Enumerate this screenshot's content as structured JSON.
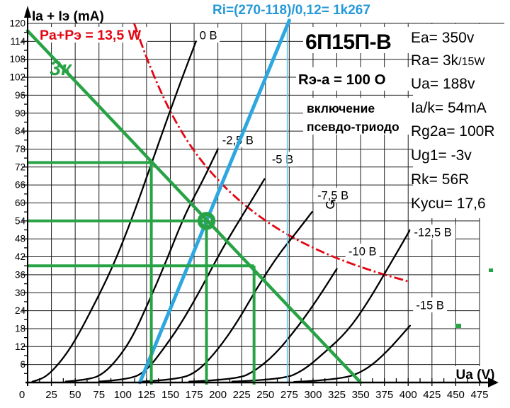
{
  "chart_data": {
    "type": "line",
    "title": "6П15П-В",
    "xlabel": "Ua (V)",
    "ylabel": "Ia + Iэ (mA)",
    "xlim": [
      0,
      478
    ],
    "ylim": [
      0,
      120
    ],
    "grid": true,
    "x_ticks": [
      0,
      25,
      50,
      75,
      100,
      125,
      150,
      175,
      200,
      225,
      250,
      275,
      300,
      325,
      350,
      375,
      400,
      425,
      450,
      475
    ],
    "y_ticks": [
      0,
      6,
      12,
      18,
      24,
      30,
      36,
      42,
      48,
      54,
      60,
      66,
      72,
      78,
      84,
      90,
      96,
      102,
      108,
      114,
      120
    ],
    "anode_curves": [
      {
        "label": "0 В",
        "label_at": [
          190,
          116
        ],
        "points": [
          [
            5,
            0.3
          ],
          [
            8,
            0.5
          ],
          [
            20,
            2
          ],
          [
            35,
            7
          ],
          [
            50,
            14
          ],
          [
            70,
            26
          ],
          [
            90,
            39
          ],
          [
            110,
            55
          ],
          [
            130,
            73
          ],
          [
            150,
            91
          ],
          [
            165,
            104
          ],
          [
            177,
            114
          ]
        ]
      },
      {
        "label": "-2,5 В",
        "label_at": [
          221,
          81
        ],
        "points": [
          [
            40,
            0.3
          ],
          [
            66,
            1
          ],
          [
            80,
            3
          ],
          [
            95,
            8
          ],
          [
            110,
            15
          ],
          [
            126,
            26
          ],
          [
            145,
            40
          ],
          [
            165,
            56
          ],
          [
            185,
            68
          ],
          [
            200,
            78
          ]
        ]
      },
      {
        "label": "-5 В",
        "label_at": [
          268,
          74.5
        ],
        "points": [
          [
            75,
            0.3
          ],
          [
            108,
            1
          ],
          [
            125,
            4
          ],
          [
            140,
            10
          ],
          [
            160,
            19
          ],
          [
            180,
            30
          ],
          [
            205,
            45
          ],
          [
            230,
            58
          ],
          [
            249,
            68
          ]
        ]
      },
      {
        "label": "-7,5 В",
        "label_at": [
          321,
          62.5
        ],
        "points": [
          [
            120,
            0.3
          ],
          [
            160,
            1
          ],
          [
            180,
            4
          ],
          [
            200,
            11
          ],
          [
            220,
            20
          ],
          [
            240,
            31
          ],
          [
            262,
            42
          ],
          [
            282,
            50
          ],
          [
            299,
            57
          ]
        ]
      },
      {
        "label": "-10 В",
        "label_at": [
          352,
          43.8
        ],
        "points": [
          [
            170,
            0.3
          ],
          [
            220,
            1
          ],
          [
            240,
            4
          ],
          [
            262,
            10
          ],
          [
            285,
            19
          ],
          [
            305,
            28
          ],
          [
            325,
            38
          ]
        ]
      },
      {
        "label": "-12,5 В",
        "label_at": [
          426,
          50.2
        ],
        "points": [
          [
            215,
            0.3
          ],
          [
            268,
            1
          ],
          [
            290,
            4
          ],
          [
            312,
            10
          ],
          [
            336,
            17
          ],
          [
            358,
            27
          ],
          [
            380,
            39
          ],
          [
            402,
            51
          ]
        ]
      },
      {
        "label": "-15 В",
        "label_at": [
          423,
          25.8
        ],
        "points": [
          [
            280,
            0.2
          ],
          [
            330,
            1
          ],
          [
            355,
            4
          ],
          [
            377,
            10
          ],
          [
            402,
            19
          ]
        ]
      }
    ],
    "power_hyperbola": {
      "label": "Pа+Pэ = 13,5 W",
      "watts": 13.5,
      "points": [
        [
          112,
          120
        ],
        [
          125,
          108
        ],
        [
          150,
          90
        ],
        [
          175,
          77
        ],
        [
          200,
          67.5
        ],
        [
          225,
          60
        ],
        [
          250,
          54
        ],
        [
          275,
          49
        ],
        [
          300,
          45
        ],
        [
          325,
          41.5
        ],
        [
          350,
          38.6
        ],
        [
          375,
          36
        ],
        [
          400,
          33.8
        ]
      ]
    },
    "load_line": {
      "label": "3к",
      "from": [
        0,
        117.5
      ],
      "to": [
        350,
        0
      ]
    },
    "ri_line": {
      "label": "Ri=(270-118)/0,12= 1k267",
      "from": [
        118,
        0
      ],
      "to": [
        275,
        121
      ]
    },
    "screen_marker_v": 273,
    "construction": {
      "h_ma": [
        73.5,
        54,
        39
      ],
      "v_volts": [
        130,
        188,
        238
      ],
      "op_point": [
        188,
        54
      ]
    }
  },
  "annotations": {
    "tube": "6П15П-В",
    "ri_formula": "Ri=(270-118)/0,12= 1k267",
    "power_label": "Pа+Pэ = 13,5 W",
    "screen_resistor": "Rэ-а = 100 О",
    "mode_line1": "включение",
    "mode_line2": "псевдо-триодо",
    "load_label": "3к",
    "right_column": [
      {
        "text": "Ea= 350v"
      },
      {
        "text": "Ra= 3k",
        "small": "/15W"
      },
      {
        "text": "Ua= 188v"
      },
      {
        "text": "Ia/k= 54mA"
      },
      {
        "text": "Rg2a= 100R"
      },
      {
        "text": "Ug1= -3v"
      },
      {
        "text": "Rk= 56R"
      },
      {
        "text": "Kycu= 17,6",
        "icon": "rotate-arrow"
      }
    ]
  },
  "colors": {
    "load_line_green": "#27a345",
    "ri_blue": "#2da7e0",
    "screen_cyan": "#63c6ec",
    "power_red": "#e30613",
    "formula_blue": "#2699d8",
    "text_black": "#000000"
  }
}
